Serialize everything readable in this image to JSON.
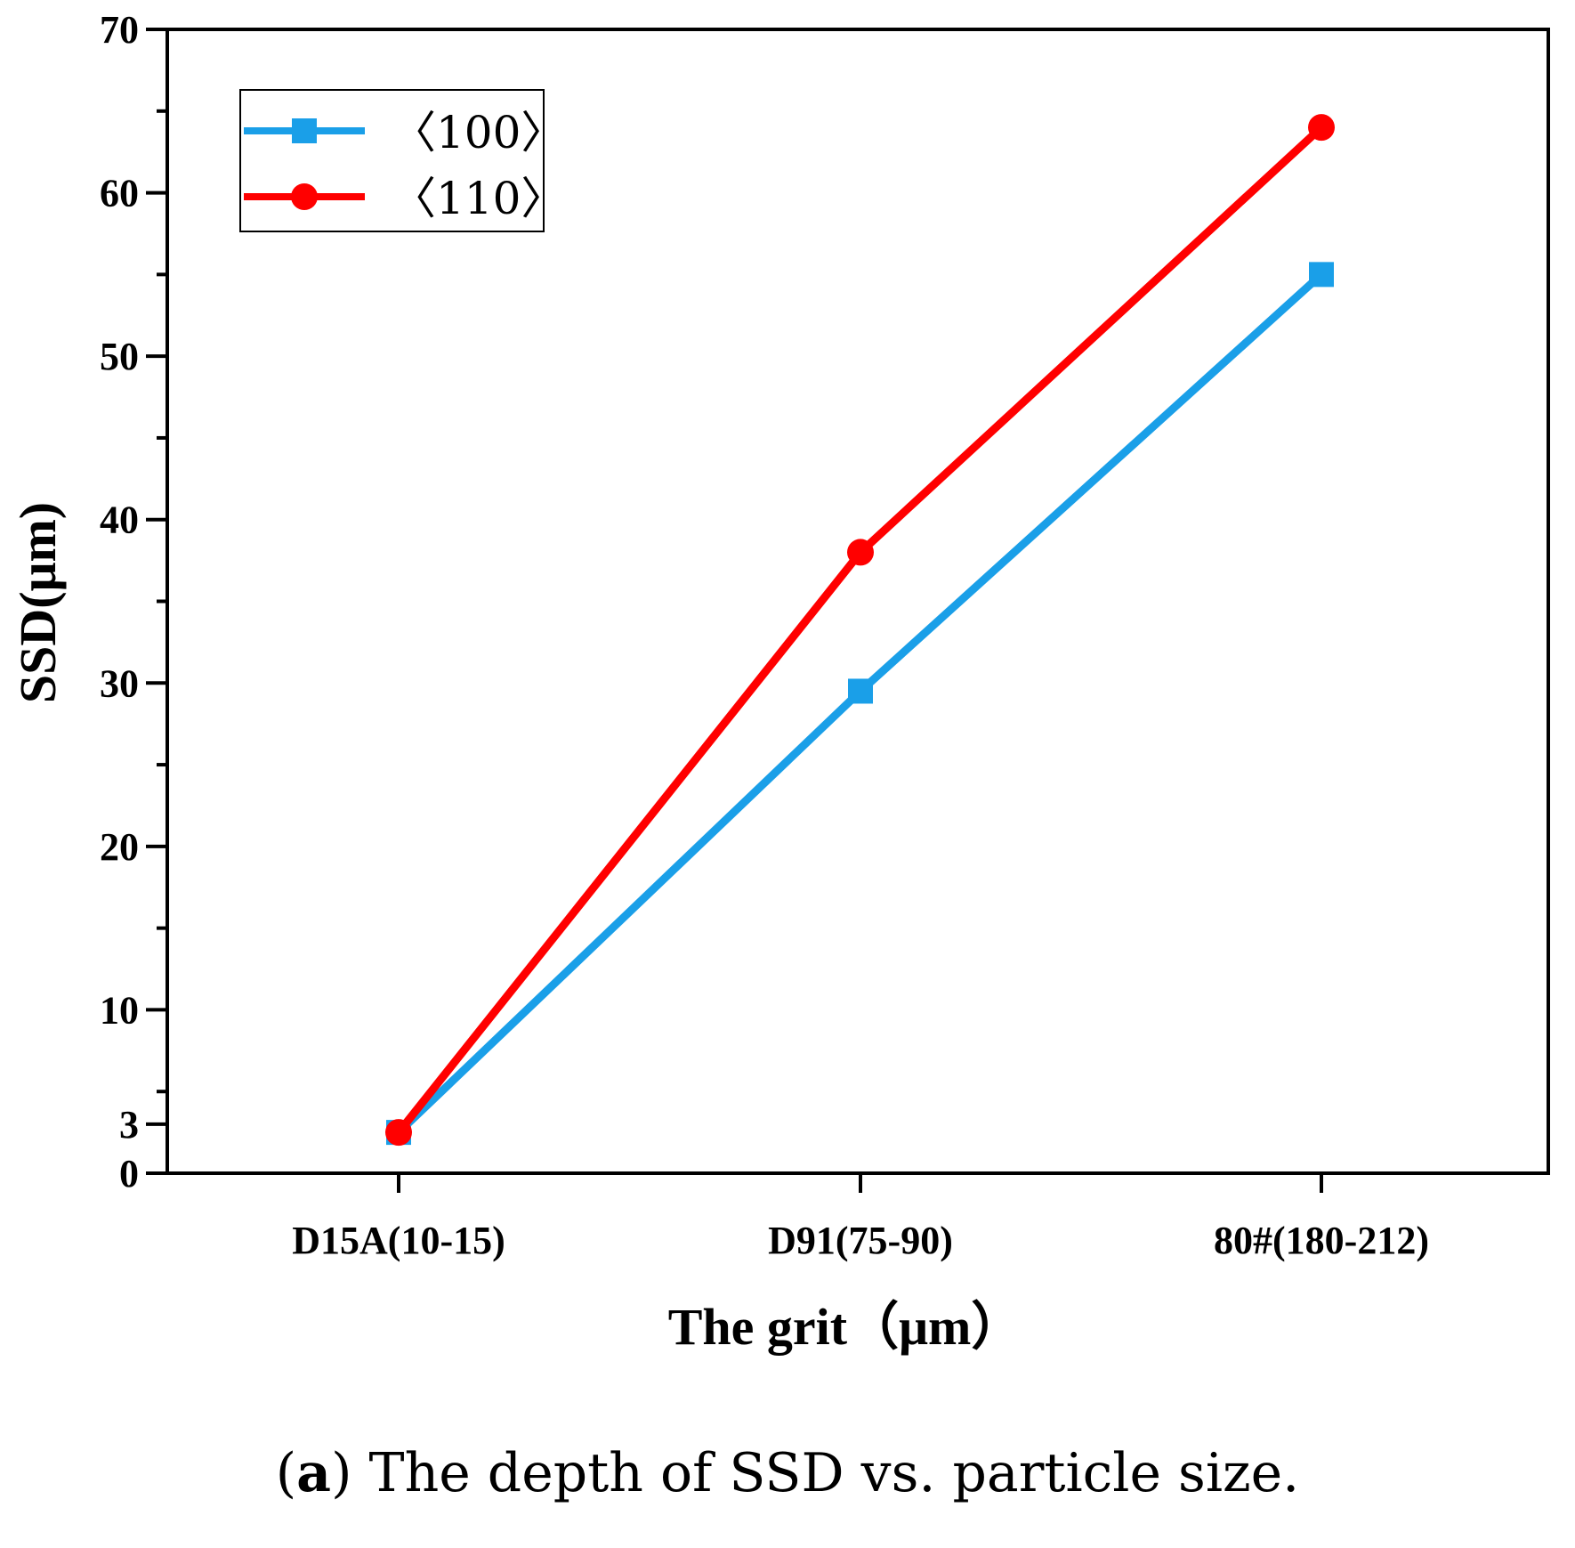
{
  "chart_data": {
    "type": "line",
    "categories": [
      "D15A(10-15)",
      "D91(75-90)",
      "80#(180-212)"
    ],
    "series": [
      {
        "name": "〈100〉",
        "values": [
          2.5,
          29.5,
          55
        ],
        "color": "#1a9fe8",
        "marker": "square"
      },
      {
        "name": "〈110〉",
        "values": [
          2.5,
          38,
          64
        ],
        "color": "#ff0000",
        "marker": "circle"
      }
    ],
    "xlabel": "The grit（μm）",
    "ylabel": "SSD(μm)",
    "ylim": [
      0,
      70
    ],
    "yticks": [
      0,
      3,
      10,
      20,
      30,
      40,
      50,
      60,
      70
    ],
    "legend_position": "top-left",
    "grid": false
  },
  "caption": {
    "label": "a",
    "text": " The depth of SSD vs. particle size."
  }
}
